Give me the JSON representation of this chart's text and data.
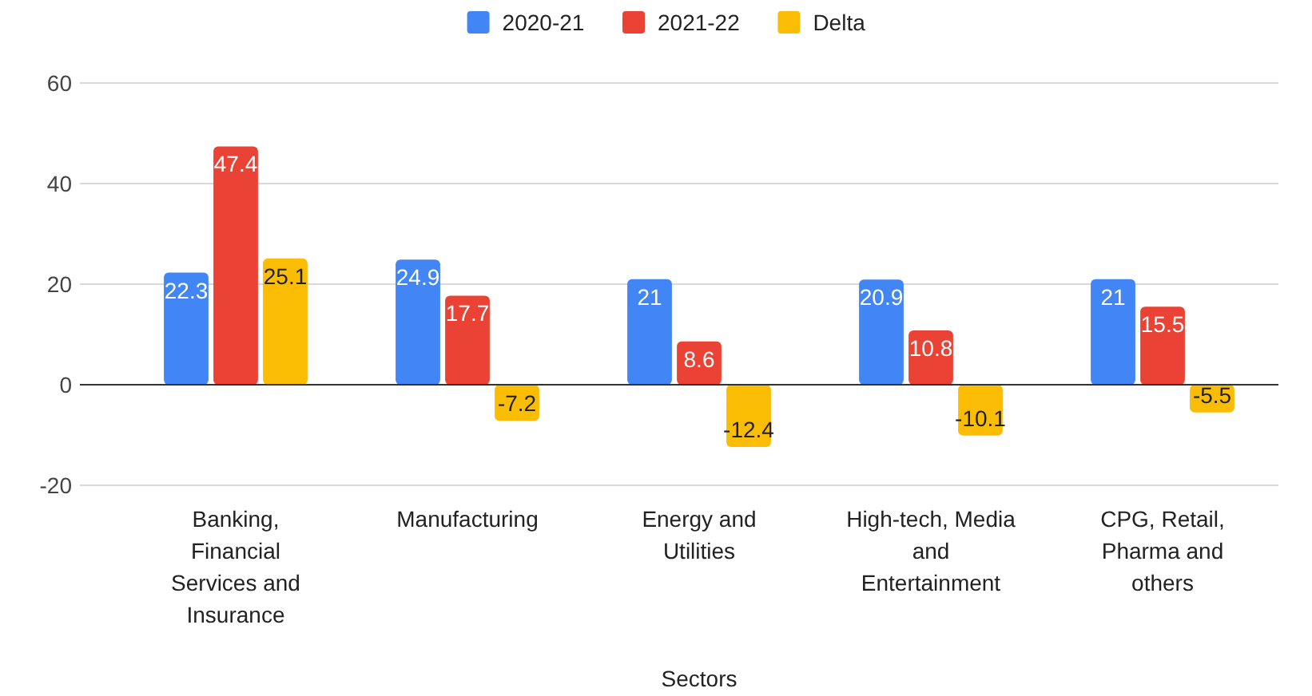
{
  "chart_data": {
    "type": "bar",
    "xlabel": "Sectors",
    "categories": [
      "Banking, Financial Services and Insurance",
      "Manufacturing",
      "Energy and Utilities",
      "High-tech, Media and Entertainment",
      "CPG, Retail, Pharma and others"
    ],
    "series": [
      {
        "name": "2020-21",
        "color": "#4285f4",
        "values": [
          22.3,
          24.9,
          21,
          20.9,
          21
        ]
      },
      {
        "name": "2021-22",
        "color": "#ea4335",
        "values": [
          47.4,
          17.7,
          8.6,
          10.8,
          15.5
        ]
      },
      {
        "name": "Delta",
        "color": "#fbbc04",
        "values": [
          25.1,
          -7.2,
          -12.4,
          -10.1,
          -5.5
        ]
      }
    ],
    "ylim": [
      -20,
      60
    ],
    "yticks": [
      -20,
      0,
      20,
      40,
      60
    ],
    "grid": "y",
    "legend": "top",
    "data_labels": true
  }
}
